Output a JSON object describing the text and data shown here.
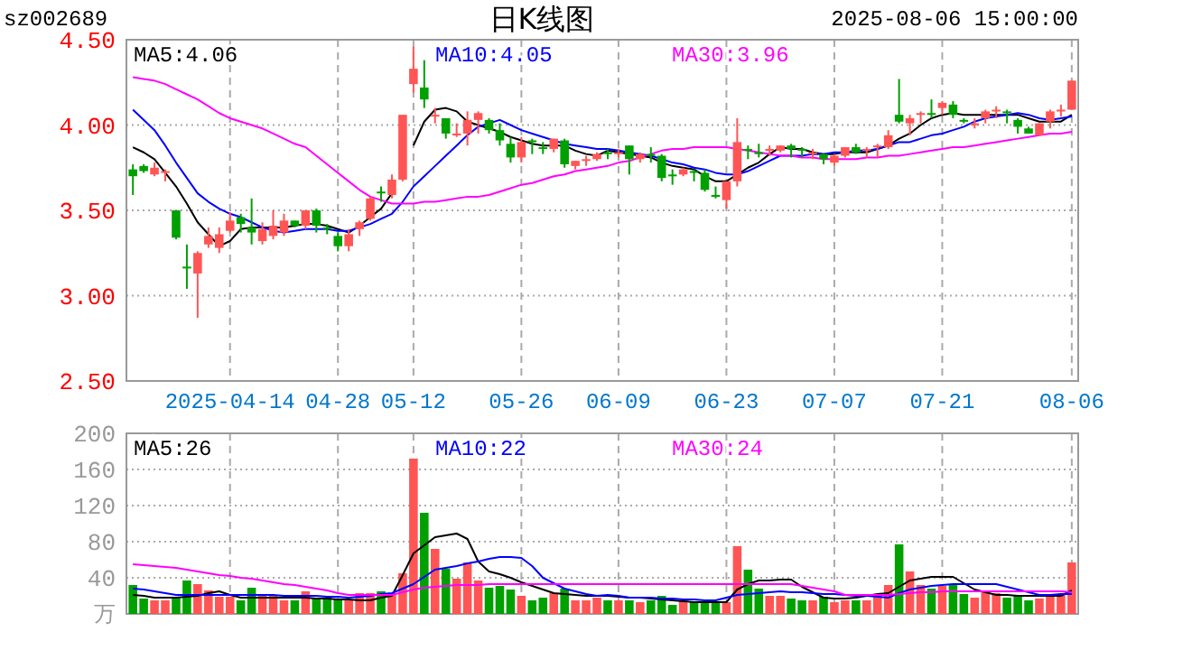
{
  "chart_data": [
    {
      "type": "candlestick",
      "title": "日K线图",
      "subtitle": "sz002689",
      "annotations": [
        "2025-08-06 15:00:00"
      ],
      "categories": [
        null,
        null,
        null,
        null,
        null,
        null,
        null,
        null,
        null,
        "2025-04-14",
        null,
        null,
        null,
        null,
        null,
        null,
        null,
        null,
        null,
        "04-28",
        null,
        null,
        null,
        null,
        null,
        null,
        "05-12",
        null,
        null,
        null,
        null,
        null,
        null,
        null,
        null,
        null,
        "05-26",
        null,
        null,
        null,
        null,
        null,
        null,
        null,
        null,
        "06-09",
        null,
        null,
        null,
        null,
        null,
        null,
        null,
        null,
        null,
        "06-23",
        null,
        null,
        null,
        null,
        null,
        null,
        null,
        null,
        null,
        "07-07",
        null,
        null,
        null,
        null,
        null,
        null,
        null,
        null,
        null,
        "07-21",
        null,
        null,
        null,
        null,
        null,
        null,
        null,
        null,
        null,
        null,
        null,
        "08-06"
      ],
      "ohlc": [
        [
          3.74,
          3.77,
          3.59,
          3.7
        ],
        [
          3.76,
          3.77,
          3.72,
          3.73
        ],
        [
          3.71,
          3.78,
          3.7,
          3.75
        ],
        [
          3.72,
          3.74,
          3.67,
          3.73
        ],
        [
          3.5,
          3.5,
          3.33,
          3.34
        ],
        [
          3.17,
          3.3,
          3.04,
          3.16
        ],
        [
          3.13,
          3.26,
          2.87,
          3.25
        ],
        [
          3.3,
          3.4,
          3.28,
          3.35
        ],
        [
          3.28,
          3.4,
          3.25,
          3.36
        ],
        [
          3.38,
          3.49,
          3.37,
          3.44
        ],
        [
          3.46,
          3.48,
          3.37,
          3.42
        ],
        [
          3.4,
          3.57,
          3.3,
          3.37
        ],
        [
          3.32,
          3.43,
          3.3,
          3.39
        ],
        [
          3.35,
          3.5,
          3.33,
          3.41
        ],
        [
          3.37,
          3.48,
          3.35,
          3.44
        ],
        [
          3.44,
          3.44,
          3.4,
          3.41
        ],
        [
          3.41,
          3.5,
          3.39,
          3.5
        ],
        [
          3.5,
          3.51,
          3.37,
          3.41
        ],
        [
          3.4,
          3.42,
          3.36,
          3.39
        ],
        [
          3.35,
          3.37,
          3.26,
          3.29
        ],
        [
          3.29,
          3.39,
          3.26,
          3.36
        ],
        [
          3.39,
          3.44,
          3.35,
          3.43
        ],
        [
          3.45,
          3.58,
          3.44,
          3.57
        ],
        [
          3.61,
          3.64,
          3.55,
          3.6
        ],
        [
          3.59,
          3.71,
          3.57,
          3.68
        ],
        [
          3.68,
          4.06,
          3.67,
          4.06
        ],
        [
          4.24,
          4.46,
          4.19,
          4.33
        ],
        [
          4.22,
          4.38,
          4.1,
          4.15
        ],
        [
          4.05,
          4.1,
          4.01,
          4.06
        ],
        [
          4.04,
          4.04,
          3.92,
          3.95
        ],
        [
          3.94,
          4.01,
          3.93,
          3.95
        ],
        [
          3.95,
          4.08,
          3.88,
          4.03
        ],
        [
          4.03,
          4.08,
          3.95,
          4.07
        ],
        [
          4.03,
          4.04,
          3.95,
          3.97
        ],
        [
          3.97,
          4.01,
          3.88,
          3.91
        ],
        [
          3.89,
          3.93,
          3.78,
          3.81
        ],
        [
          3.81,
          3.93,
          3.78,
          3.9
        ],
        [
          3.91,
          3.92,
          3.83,
          3.9
        ],
        [
          3.87,
          3.9,
          3.83,
          3.86
        ],
        [
          3.86,
          3.92,
          3.84,
          3.92
        ],
        [
          3.91,
          3.92,
          3.75,
          3.77
        ],
        [
          3.76,
          3.79,
          3.74,
          3.79
        ],
        [
          3.79,
          3.82,
          3.76,
          3.8
        ],
        [
          3.8,
          3.84,
          3.79,
          3.83
        ],
        [
          3.84,
          3.86,
          3.8,
          3.83
        ],
        [
          3.83,
          3.86,
          3.81,
          3.84
        ],
        [
          3.88,
          3.88,
          3.71,
          3.8
        ],
        [
          3.8,
          3.84,
          3.78,
          3.83
        ],
        [
          3.83,
          3.87,
          3.78,
          3.82
        ],
        [
          3.82,
          3.83,
          3.67,
          3.69
        ],
        [
          3.71,
          3.74,
          3.65,
          3.7
        ],
        [
          3.71,
          3.75,
          3.7,
          3.74
        ],
        [
          3.73,
          3.74,
          3.67,
          3.72
        ],
        [
          3.72,
          3.74,
          3.61,
          3.62
        ],
        [
          3.59,
          3.64,
          3.57,
          3.58
        ],
        [
          3.56,
          3.67,
          3.51,
          3.67
        ],
        [
          3.67,
          4.04,
          3.64,
          3.9
        ],
        [
          3.86,
          3.88,
          3.8,
          3.85
        ],
        [
          3.84,
          3.89,
          3.81,
          3.83
        ],
        [
          3.85,
          3.88,
          3.82,
          3.86
        ],
        [
          3.85,
          3.88,
          3.84,
          3.88
        ],
        [
          3.88,
          3.89,
          3.81,
          3.86
        ],
        [
          3.86,
          3.87,
          3.81,
          3.85
        ],
        [
          3.83,
          3.86,
          3.8,
          3.84
        ],
        [
          3.83,
          3.83,
          3.77,
          3.8
        ],
        [
          3.78,
          3.83,
          3.76,
          3.82
        ],
        [
          3.82,
          3.87,
          3.81,
          3.87
        ],
        [
          3.87,
          3.89,
          3.83,
          3.84
        ],
        [
          3.85,
          3.87,
          3.81,
          3.86
        ],
        [
          3.87,
          3.89,
          3.81,
          3.88
        ],
        [
          3.87,
          3.97,
          3.86,
          3.94
        ],
        [
          4.06,
          4.27,
          4.01,
          4.02
        ],
        [
          4.01,
          4.06,
          3.94,
          4.04
        ],
        [
          4.06,
          4.08,
          4.01,
          4.07
        ],
        [
          4.07,
          4.15,
          4.04,
          4.06
        ],
        [
          4.1,
          4.14,
          4.06,
          4.13
        ],
        [
          4.12,
          4.14,
          4.04,
          4.06
        ],
        [
          4.03,
          4.04,
          4.01,
          4.02
        ],
        [
          4.0,
          4.04,
          3.98,
          4.01
        ],
        [
          4.04,
          4.09,
          4.01,
          4.08
        ],
        [
          4.08,
          4.11,
          4.04,
          4.09
        ],
        [
          4.08,
          4.09,
          4.01,
          4.07
        ],
        [
          4.03,
          4.04,
          3.95,
          3.99
        ],
        [
          3.98,
          3.99,
          3.95,
          3.95
        ],
        [
          3.94,
          4.01,
          3.94,
          4.01
        ],
        [
          4.02,
          4.09,
          3.98,
          4.08
        ],
        [
          4.08,
          4.12,
          4.05,
          4.09
        ],
        [
          4.09,
          4.26,
          4.09,
          4.26
        ]
      ],
      "colors": [
        "#00a000",
        "#00a000",
        "#ff5555",
        "#ff5555",
        "#00a000",
        "#00a000",
        "#ff5555",
        "#ff5555",
        "#ff5555",
        "#ff5555",
        "#00a000",
        "#00a000",
        "#ff5555",
        "#ff5555",
        "#ff5555",
        "#00a000",
        "#ff5555",
        "#00a000",
        "#00a000",
        "#00a000",
        "#ff5555",
        "#ff5555",
        "#ff5555",
        "#00a000",
        "#ff5555",
        "#ff5555",
        "#ff5555",
        "#00a000",
        "#ff5555",
        "#00a000",
        "#ff5555",
        "#ff5555",
        "#ff5555",
        "#00a000",
        "#00a000",
        "#00a000",
        "#ff5555",
        "#00a000",
        "#00a000",
        "#ff5555",
        "#00a000",
        "#ff5555",
        "#ff5555",
        "#ff5555",
        "#00a000",
        "#ff5555",
        "#00a000",
        "#ff5555",
        "#00a000",
        "#00a000",
        "#00a000",
        "#ff5555",
        "#00a000",
        "#00a000",
        "#00a000",
        "#ff5555",
        "#ff5555",
        "#00a000",
        "#00a000",
        "#ff5555",
        "#ff5555",
        "#00a000",
        "#00a000",
        "#ff5555",
        "#00a000",
        "#ff5555",
        "#ff5555",
        "#00a000",
        "#ff5555",
        "#ff5555",
        "#ff5555",
        "#00a000",
        "#ff5555",
        "#ff5555",
        "#00a000",
        "#ff5555",
        "#00a000",
        "#00a000",
        "#ff5555",
        "#ff5555",
        "#ff5555",
        "#00a000",
        "#00a000",
        "#00a000",
        "#ff5555",
        "#ff5555",
        "#ff5555",
        "#ff5555"
      ],
      "series": [
        {
          "type": "line",
          "name": "MA5:4.06",
          "color": "#000000",
          "values": [
            3.87,
            3.84,
            3.8,
            3.72,
            3.64,
            3.54,
            3.43,
            3.36,
            3.29,
            3.32,
            3.39,
            3.4,
            3.4,
            3.4,
            3.4,
            3.41,
            3.42,
            3.42,
            3.41,
            3.39,
            3.37,
            3.41,
            3.46,
            3.51,
            3.6,
            null,
            3.88,
            4.02,
            4.09,
            4.1,
            4.08,
            4.02,
            4.0,
            3.98,
            3.96,
            3.93,
            3.91,
            3.89,
            3.88,
            3.88,
            3.88,
            3.85,
            3.83,
            3.82,
            3.85,
            3.84,
            3.83,
            3.82,
            3.81,
            3.78,
            3.76,
            3.75,
            3.74,
            3.7,
            3.67,
            3.67,
            3.71,
            3.75,
            3.78,
            3.83,
            3.87,
            3.86,
            3.86,
            3.84,
            3.83,
            3.83,
            3.84,
            3.84,
            3.84,
            3.86,
            3.88,
            3.92,
            3.95,
            4.0,
            4.04,
            4.06,
            4.07,
            4.06,
            4.06,
            4.06,
            4.06,
            4.06,
            4.06,
            4.04,
            4.02,
            4.02,
            4.02,
            4.06
          ]
        },
        {
          "type": "line",
          "name": "MA10:4.05",
          "color": "#0000ff",
          "values": [
            4.09,
            4.03,
            3.97,
            3.88,
            3.78,
            3.69,
            3.6,
            3.55,
            3.51,
            3.48,
            3.46,
            3.43,
            3.4,
            3.38,
            3.37,
            3.38,
            3.39,
            3.39,
            3.39,
            3.38,
            3.38,
            3.4,
            3.42,
            3.45,
            3.48,
            3.55,
            3.64,
            3.7,
            3.76,
            3.82,
            3.88,
            3.94,
            3.99,
            4.01,
            4.03,
            4.0,
            3.97,
            3.95,
            3.93,
            3.91,
            3.89,
            3.88,
            3.87,
            3.86,
            3.86,
            3.85,
            3.84,
            3.83,
            3.82,
            3.8,
            3.78,
            3.77,
            3.75,
            3.74,
            3.72,
            3.71,
            3.71,
            3.73,
            3.76,
            3.79,
            3.82,
            3.82,
            3.82,
            3.83,
            3.83,
            3.84,
            3.84,
            3.85,
            3.85,
            3.86,
            3.88,
            3.9,
            3.9,
            3.92,
            3.94,
            3.95,
            3.97,
            3.99,
            4.02,
            4.04,
            4.05,
            4.06,
            4.07,
            4.06,
            4.04,
            4.03,
            4.04,
            4.05
          ]
        },
        {
          "type": "line",
          "name": "MA30:3.96",
          "color": "#ff00ff",
          "values": [
            4.28,
            4.27,
            4.26,
            4.24,
            4.21,
            4.18,
            4.15,
            4.11,
            4.07,
            4.04,
            4.02,
            4.0,
            3.98,
            3.95,
            3.92,
            3.89,
            3.87,
            3.82,
            3.77,
            3.72,
            3.67,
            3.62,
            3.58,
            3.56,
            3.54,
            3.54,
            3.54,
            3.55,
            3.55,
            3.56,
            3.57,
            3.58,
            3.58,
            3.59,
            3.61,
            3.63,
            3.65,
            3.66,
            3.68,
            3.7,
            3.71,
            3.73,
            3.74,
            3.75,
            3.76,
            3.78,
            3.79,
            3.81,
            3.83,
            3.85,
            3.86,
            3.86,
            3.87,
            3.87,
            3.87,
            3.87,
            3.86,
            3.85,
            3.84,
            3.83,
            3.82,
            3.82,
            3.81,
            3.81,
            3.8,
            3.8,
            3.8,
            3.8,
            3.81,
            3.81,
            3.82,
            3.82,
            3.83,
            3.84,
            3.85,
            3.86,
            3.87,
            3.87,
            3.88,
            3.89,
            3.9,
            3.91,
            3.92,
            3.93,
            3.94,
            3.95,
            3.95,
            3.96
          ]
        }
      ],
      "ylim": [
        2.5,
        4.5
      ],
      "yticks": [
        {
          "value": 2.5,
          "label": "2.50"
        },
        {
          "value": 3,
          "label": "3.00"
        },
        {
          "value": 3.5,
          "label": "3.50"
        },
        {
          "value": 4,
          "label": "4.00"
        },
        {
          "value": 4.5,
          "label": "4.50"
        }
      ],
      "grid": true,
      "legend": "top left"
    },
    {
      "type": "bar",
      "ylabel": "万",
      "categories": [
        null,
        null,
        null,
        null,
        null,
        null,
        null,
        null,
        null,
        null,
        null,
        null,
        null,
        null,
        null,
        null,
        null,
        null,
        null,
        null,
        null,
        null,
        null,
        null,
        null,
        null,
        null,
        null,
        null,
        null,
        null,
        null,
        null,
        null,
        null,
        null,
        null,
        null,
        null,
        null,
        null,
        null,
        null,
        null,
        null,
        null,
        null,
        null,
        null,
        null,
        null,
        null,
        null,
        null,
        null,
        null,
        null,
        null,
        null,
        null,
        null,
        null,
        null,
        null,
        null,
        null,
        null,
        null,
        null,
        null,
        null,
        null,
        null,
        null,
        null,
        null,
        null,
        null,
        null,
        null,
        null,
        null,
        null,
        null,
        null,
        null,
        null,
        null
      ],
      "values": [
        32,
        17,
        15,
        15,
        18,
        37,
        33,
        26,
        19,
        19,
        15,
        29,
        20,
        20,
        15,
        15,
        25,
        17,
        18,
        17,
        15,
        23,
        23,
        25,
        23,
        45,
        172,
        112,
        72,
        50,
        39,
        57,
        37,
        29,
        31,
        27,
        20,
        15,
        18,
        23,
        28,
        15,
        15,
        18,
        15,
        15,
        15,
        13,
        15,
        20,
        10,
        15,
        13,
        13,
        13,
        13,
        75,
        49,
        28,
        20,
        20,
        17,
        15,
        15,
        19,
        13,
        15,
        15,
        15,
        22,
        32,
        77,
        47,
        32,
        28,
        31,
        33,
        22,
        18,
        25,
        23,
        18,
        20,
        15,
        17,
        22,
        22,
        57
      ],
      "colors": [
        "#00a000",
        "#00a000",
        "#ff5555",
        "#ff5555",
        "#00a000",
        "#00a000",
        "#ff5555",
        "#ff5555",
        "#ff5555",
        "#ff5555",
        "#00a000",
        "#00a000",
        "#ff5555",
        "#ff5555",
        "#ff5555",
        "#00a000",
        "#ff5555",
        "#00a000",
        "#00a000",
        "#00a000",
        "#ff5555",
        "#ff5555",
        "#ff5555",
        "#00a000",
        "#ff5555",
        "#ff5555",
        "#ff5555",
        "#00a000",
        "#ff5555",
        "#00a000",
        "#ff5555",
        "#ff5555",
        "#ff5555",
        "#00a000",
        "#00a000",
        "#00a000",
        "#ff5555",
        "#00a000",
        "#00a000",
        "#ff5555",
        "#00a000",
        "#ff5555",
        "#ff5555",
        "#ff5555",
        "#00a000",
        "#ff5555",
        "#00a000",
        "#ff5555",
        "#00a000",
        "#00a000",
        "#00a000",
        "#ff5555",
        "#00a000",
        "#00a000",
        "#00a000",
        "#ff5555",
        "#ff5555",
        "#00a000",
        "#00a000",
        "#ff5555",
        "#ff5555",
        "#00a000",
        "#00a000",
        "#ff5555",
        "#00a000",
        "#ff5555",
        "#ff5555",
        "#00a000",
        "#ff5555",
        "#ff5555",
        "#ff5555",
        "#00a000",
        "#ff5555",
        "#ff5555",
        "#00a000",
        "#ff5555",
        "#00a000",
        "#00a000",
        "#ff5555",
        "#ff5555",
        "#ff5555",
        "#00a000",
        "#00a000",
        "#00a000",
        "#ff5555",
        "#ff5555",
        "#ff5555",
        "#ff5555"
      ],
      "series": [
        {
          "type": "line",
          "name": "MA5:26",
          "color": "#000000",
          "values": [
            21,
            20,
            18,
            18,
            18,
            19,
            20,
            23,
            25,
            21,
            18,
            18,
            18,
            18,
            18,
            18,
            18,
            17,
            17,
            16,
            16,
            15,
            15,
            18,
            20,
            43,
            67,
            76,
            85,
            87,
            89,
            83,
            58,
            47,
            44,
            40,
            35,
            31,
            27,
            23,
            22,
            21,
            20,
            20,
            20,
            19,
            18,
            18,
            17,
            16,
            15,
            14,
            13,
            13,
            13,
            13,
            27,
            33,
            37,
            37,
            38,
            38,
            30,
            24,
            18,
            17,
            17,
            18,
            20,
            22,
            23,
            30,
            37,
            39,
            41,
            41,
            41,
            34,
            27,
            24,
            21,
            21,
            20,
            20,
            20,
            20,
            20,
            26
          ]
        },
        {
          "type": "line",
          "name": "MA10:22",
          "color": "#0000ff",
          "values": [
            28,
            27,
            25,
            23,
            21,
            21,
            21,
            21,
            21,
            21,
            21,
            21,
            21,
            21,
            20,
            20,
            20,
            20,
            19,
            19,
            18,
            19,
            20,
            22,
            23,
            28,
            33,
            41,
            49,
            51,
            53,
            56,
            58,
            61,
            63,
            63,
            62,
            53,
            40,
            34,
            28,
            25,
            22,
            20,
            21,
            20,
            18,
            18,
            18,
            17,
            17,
            16,
            16,
            15,
            15,
            18,
            21,
            22,
            23,
            24,
            25,
            24,
            24,
            23,
            22,
            22,
            21,
            20,
            20,
            19,
            18,
            23,
            27,
            29,
            31,
            32,
            33,
            33,
            33,
            33,
            33,
            30,
            27,
            24,
            21,
            21,
            22,
            22
          ]
        },
        {
          "type": "line",
          "name": "MA30:24",
          "color": "#ff00ff",
          "values": [
            55,
            54,
            53,
            52,
            51,
            49,
            47,
            45,
            43,
            42,
            40,
            39,
            37,
            35,
            33,
            32,
            30,
            28,
            26,
            23,
            21,
            21,
            21,
            21,
            21,
            24,
            27,
            29,
            30,
            31,
            32,
            32,
            32,
            33,
            33,
            33,
            33,
            33,
            33,
            33,
            33,
            33,
            33,
            33,
            33,
            33,
            33,
            33,
            33,
            33,
            33,
            33,
            33,
            33,
            33,
            33,
            33,
            33,
            33,
            33,
            33,
            33,
            31,
            29,
            27,
            25,
            21,
            21,
            21,
            21,
            21,
            22,
            23,
            24,
            24,
            25,
            25,
            25,
            25,
            25,
            25,
            25,
            25,
            25,
            25,
            25,
            25,
            24
          ]
        }
      ],
      "ylim": [
        0,
        200
      ],
      "yticks": [
        40,
        80,
        120,
        160,
        200
      ],
      "grid": true,
      "legend": "top left",
      "tick_labels": "y"
    }
  ]
}
